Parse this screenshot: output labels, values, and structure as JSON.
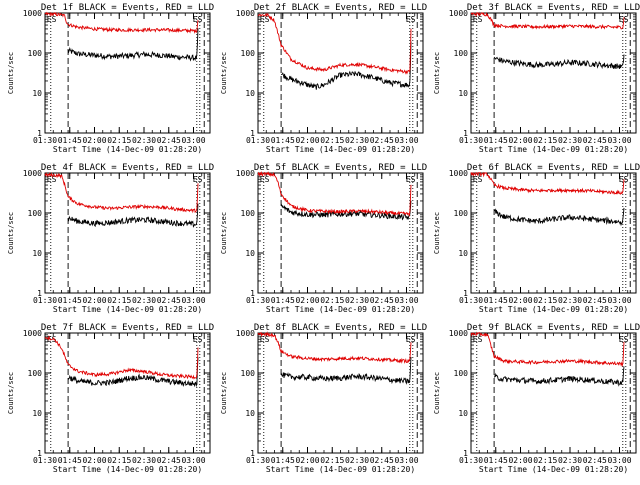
{
  "colors": {
    "events": "#000000",
    "lld": "#e00000",
    "axis": "#000000"
  },
  "xlabel": "Start Time (14-Dec-09 01:28:20)",
  "ylabel": "Counts/sec",
  "x_ticks": [
    "01:30",
    "01:45",
    "02:00",
    "02:15",
    "02:30",
    "02:45",
    "03:00"
  ],
  "y_ticks": [
    "1",
    "10",
    "100",
    "1000"
  ],
  "chart_data": [
    {
      "type": "line",
      "title": "Det 1f BLACK = Events, RED = LLD",
      "x_range_min": [
        90,
        190
      ],
      "ylim": [
        1,
        1000
      ],
      "yscale": "log",
      "marks": {
        "dotted": [
          93.5,
          182
        ],
        "dashed": [
          104,
          186.5
        ],
        "text": "ES"
      },
      "series": [
        {
          "name": "BLACK = Events",
          "x_min": [
            104,
            110,
            120,
            130,
            140,
            150,
            160,
            170,
            180,
            182,
            183
          ],
          "y": [
            115,
            95,
            88,
            82,
            85,
            92,
            88,
            80,
            76,
            75,
            600
          ]
        },
        {
          "name": "RED = LLD",
          "x_min": [
            90,
            96,
            100,
            102,
            103,
            104,
            110,
            120,
            130,
            140,
            150,
            160,
            170,
            180,
            182,
            183
          ],
          "y": [
            950,
            930,
            900,
            850,
            600,
            520,
            440,
            400,
            380,
            375,
            380,
            378,
            370,
            360,
            360,
            900
          ]
        }
      ]
    },
    {
      "type": "line",
      "title": "Det 2f BLACK = Events, RED = LLD",
      "x_range_min": [
        90,
        190
      ],
      "ylim": [
        1,
        1000
      ],
      "yscale": "log",
      "marks": {
        "dotted": [
          93.5,
          182
        ],
        "dashed": [
          104,
          186.5
        ],
        "text": "ES"
      },
      "series": [
        {
          "name": "BLACK = Events",
          "x_min": [
            104,
            110,
            120,
            125,
            130,
            140,
            150,
            160,
            170,
            180,
            182,
            183
          ],
          "y": [
            30,
            22,
            16,
            14,
            16,
            28,
            30,
            24,
            18,
            16,
            16,
            500
          ]
        },
        {
          "name": "RED = LLD",
          "x_min": [
            90,
            96,
            100,
            102,
            104,
            110,
            120,
            130,
            140,
            150,
            160,
            170,
            180,
            182,
            183
          ],
          "y": [
            900,
            880,
            650,
            320,
            160,
            70,
            42,
            38,
            50,
            52,
            45,
            38,
            34,
            34,
            850
          ]
        }
      ]
    },
    {
      "type": "line",
      "title": "Det 3f BLACK = Events, RED = LLD",
      "x_range_min": [
        90,
        190
      ],
      "ylim": [
        1,
        1000
      ],
      "yscale": "log",
      "marks": {
        "dotted": [
          93.5,
          182
        ],
        "dashed": [
          104,
          186.5
        ],
        "text": "ES"
      },
      "series": [
        {
          "name": "BLACK = Events",
          "x_min": [
            104,
            110,
            120,
            130,
            140,
            150,
            160,
            170,
            180,
            182,
            183
          ],
          "y": [
            75,
            62,
            55,
            50,
            52,
            58,
            55,
            50,
            46,
            45,
            120
          ]
        },
        {
          "name": "RED = LLD",
          "x_min": [
            90,
            96,
            100,
            102,
            104,
            110,
            120,
            130,
            140,
            150,
            160,
            170,
            180,
            182,
            183
          ],
          "y": [
            950,
            940,
            920,
            700,
            500,
            470,
            460,
            450,
            460,
            470,
            460,
            450,
            440,
            440,
            900
          ]
        }
      ]
    },
    {
      "type": "line",
      "title": "Det 4f BLACK = Events, RED = LLD",
      "x_range_min": [
        90,
        190
      ],
      "ylim": [
        1,
        1000
      ],
      "yscale": "log",
      "marks": {
        "dotted": [
          93.5,
          182
        ],
        "dashed": [
          104,
          186.5
        ],
        "text": "ES"
      },
      "series": [
        {
          "name": "BLACK = Events",
          "x_min": [
            104,
            110,
            120,
            130,
            140,
            150,
            160,
            170,
            180,
            182,
            183
          ],
          "y": [
            75,
            62,
            55,
            58,
            65,
            68,
            62,
            56,
            52,
            52,
            300
          ]
        },
        {
          "name": "RED = LLD",
          "x_min": [
            90,
            96,
            100,
            102,
            104,
            110,
            120,
            130,
            140,
            150,
            160,
            170,
            180,
            182,
            183
          ],
          "y": [
            900,
            880,
            850,
            500,
            250,
            170,
            140,
            130,
            140,
            145,
            140,
            125,
            115,
            115,
            850
          ]
        }
      ]
    },
    {
      "type": "line",
      "title": "Det 5f BLACK = Events, RED = LLD",
      "x_range_min": [
        90,
        190
      ],
      "ylim": [
        1,
        1000
      ],
      "yscale": "log",
      "marks": {
        "dotted": [
          93.5,
          182
        ],
        "dashed": [
          104,
          186.5
        ],
        "text": "ES"
      },
      "series": [
        {
          "name": "BLACK = Events",
          "x_min": [
            104,
            110,
            120,
            130,
            140,
            150,
            160,
            170,
            180,
            182,
            183
          ],
          "y": [
            150,
            105,
            92,
            90,
            95,
            96,
            90,
            84,
            78,
            78,
            300
          ]
        },
        {
          "name": "RED = LLD",
          "x_min": [
            90,
            96,
            100,
            102,
            104,
            110,
            120,
            130,
            140,
            150,
            160,
            170,
            180,
            182,
            183
          ],
          "y": [
            950,
            940,
            900,
            600,
            300,
            150,
            115,
            110,
            108,
            112,
            108,
            100,
            95,
            95,
            900
          ]
        }
      ]
    },
    {
      "type": "line",
      "title": "Det 6f BLACK = Events, RED = LLD",
      "x_range_min": [
        90,
        190
      ],
      "ylim": [
        1,
        1000
      ],
      "yscale": "log",
      "marks": {
        "dotted": [
          93.5,
          182
        ],
        "dashed": [
          104,
          186.5
        ],
        "text": "ES"
      },
      "series": [
        {
          "name": "BLACK = Events",
          "x_min": [
            104,
            110,
            120,
            130,
            140,
            150,
            160,
            170,
            180,
            182,
            183
          ],
          "y": [
            110,
            80,
            68,
            62,
            70,
            78,
            72,
            65,
            60,
            60,
            200
          ]
        },
        {
          "name": "RED = LLD",
          "x_min": [
            90,
            96,
            100,
            102,
            104,
            110,
            120,
            130,
            140,
            150,
            160,
            170,
            180,
            182,
            183
          ],
          "y": [
            950,
            940,
            930,
            700,
            500,
            420,
            380,
            360,
            370,
            370,
            360,
            340,
            320,
            320,
            900
          ]
        }
      ]
    },
    {
      "type": "line",
      "title": "Det 7f BLACK = Events, RED = LLD",
      "x_range_min": [
        90,
        190
      ],
      "ylim": [
        1,
        1000
      ],
      "yscale": "log",
      "marks": {
        "dotted": [
          93.5,
          182
        ],
        "dashed": [
          104,
          186.5
        ],
        "text": "ES"
      },
      "series": [
        {
          "name": "BLACK = Events",
          "x_min": [
            104,
            110,
            120,
            130,
            140,
            150,
            160,
            170,
            180,
            182,
            183
          ],
          "y": [
            80,
            62,
            56,
            58,
            74,
            78,
            66,
            58,
            54,
            54,
            400
          ]
        },
        {
          "name": "RED = LLD",
          "x_min": [
            90,
            96,
            100,
            102,
            104,
            110,
            120,
            130,
            140,
            150,
            160,
            170,
            180,
            182,
            183
          ],
          "y": [
            800,
            680,
            420,
            260,
            160,
            110,
            90,
            95,
            118,
            110,
            92,
            84,
            80,
            80,
            800
          ]
        }
      ]
    },
    {
      "type": "line",
      "title": "Det 8f BLACK = Events, RED = LLD",
      "x_range_min": [
        90,
        190
      ],
      "ylim": [
        1,
        1000
      ],
      "yscale": "log",
      "marks": {
        "dotted": [
          93.5,
          182
        ],
        "dashed": [
          104,
          186.5
        ],
        "text": "ES"
      },
      "series": [
        {
          "name": "BLACK = Events",
          "x_min": [
            104,
            110,
            120,
            130,
            140,
            150,
            160,
            170,
            180,
            182,
            183
          ],
          "y": [
            90,
            80,
            78,
            72,
            75,
            82,
            76,
            68,
            62,
            62,
            400
          ]
        },
        {
          "name": "RED = LLD",
          "x_min": [
            90,
            96,
            100,
            102,
            104,
            110,
            120,
            130,
            140,
            150,
            160,
            170,
            180,
            182,
            183
          ],
          "y": [
            950,
            930,
            880,
            600,
            350,
            260,
            230,
            220,
            230,
            235,
            225,
            210,
            200,
            200,
            900
          ]
        }
      ]
    },
    {
      "type": "line",
      "title": "Det 9f BLACK = Events, RED = LLD",
      "x_range_min": [
        90,
        190
      ],
      "ylim": [
        1,
        1000
      ],
      "yscale": "log",
      "marks": {
        "dotted": [
          93.5,
          182
        ],
        "dashed": [
          104,
          186.5
        ],
        "text": "ES"
      },
      "series": [
        {
          "name": "BLACK = Events",
          "x_min": [
            104,
            110,
            120,
            130,
            140,
            150,
            160,
            170,
            180,
            182,
            183
          ],
          "y": [
            80,
            70,
            66,
            62,
            66,
            72,
            68,
            62,
            58,
            58,
            200
          ]
        },
        {
          "name": "RED = LLD",
          "x_min": [
            90,
            96,
            100,
            102,
            104,
            110,
            120,
            130,
            140,
            150,
            160,
            170,
            180,
            182,
            183
          ],
          "y": [
            950,
            930,
            900,
            500,
            260,
            200,
            190,
            185,
            195,
            200,
            192,
            180,
            170,
            170,
            900
          ]
        }
      ]
    }
  ]
}
